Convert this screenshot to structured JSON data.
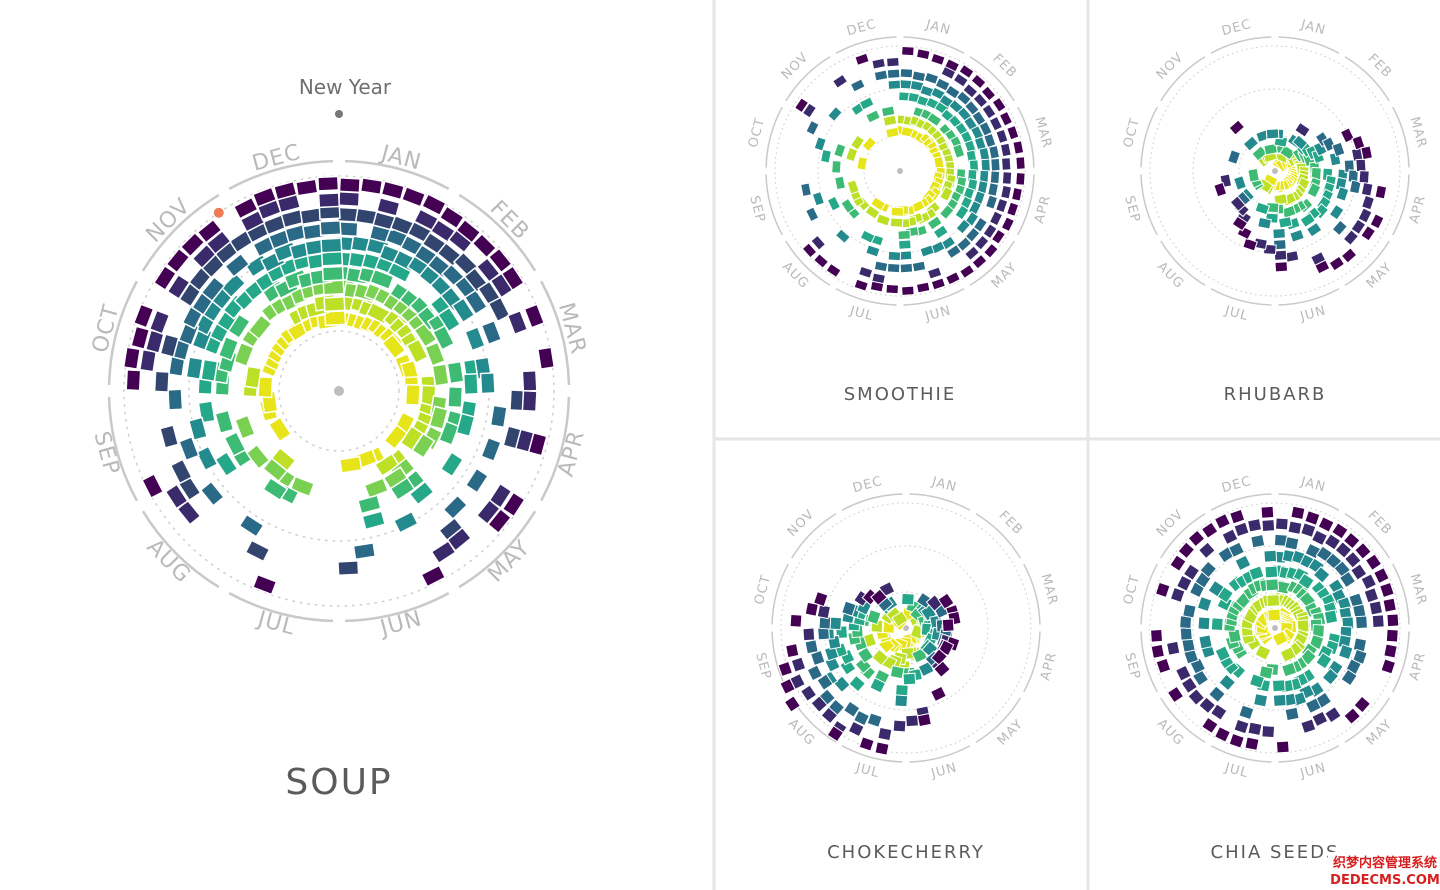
{
  "months": [
    "JAN",
    "FEB",
    "MAR",
    "APR",
    "MAY",
    "JUN",
    "JUL",
    "AUG",
    "SEP",
    "OCT",
    "NOV",
    "DEC"
  ],
  "annotation": {
    "label": "New Year",
    "marker_month": "JAN",
    "highlight_month": "NOV"
  },
  "colors": {
    "ring": "#c9c9c9",
    "dots": "#cfcfcf",
    "center": "#bdbdbd",
    "annotation_dot": "#777777",
    "highlight_dot": "#ef7b56",
    "panel_divider": "#e6e6e6",
    "palette": [
      "#440154",
      "#3b2a6b",
      "#31456f",
      "#2a6a86",
      "#238a8d",
      "#25a889",
      "#3dbb74",
      "#7ad151",
      "#bddf26",
      "#e7e419"
    ]
  },
  "chart_data": [
    {
      "type": "radial-heatmap",
      "name": "soup",
      "title": "SOUP",
      "axis": "month of year (clockwise from JAN)",
      "radial_axis": "year (inner = older, outer = recent)",
      "peak_months": [
        "NOV",
        "DEC",
        "JAN",
        "FEB"
      ],
      "low_months": [
        "JUN",
        "JUL",
        "AUG"
      ]
    },
    {
      "type": "radial-heatmap",
      "name": "smoothie",
      "title": "SMOOTHIE",
      "peak_months": [
        "JAN",
        "FEB",
        "MAR",
        "APR",
        "MAY"
      ],
      "low_months": [
        "OCT",
        "NOV"
      ]
    },
    {
      "type": "radial-heatmap",
      "name": "rhubarb",
      "title": "RHUBARB",
      "peak_months": [
        "APR",
        "MAY"
      ],
      "low_months": [
        "SEP",
        "OCT",
        "NOV",
        "DEC"
      ]
    },
    {
      "type": "radial-heatmap",
      "name": "chokecherry",
      "title": "CHOKECHERRY",
      "peak_months": [
        "AUG",
        "SEP"
      ],
      "low_months": [
        "DEC",
        "JAN",
        "FEB"
      ]
    },
    {
      "type": "radial-heatmap",
      "name": "chia",
      "title": "CHIA SEEDS",
      "peak_months": [
        "JAN",
        "FEB",
        "MAR"
      ],
      "low_months": [
        "JUL",
        "AUG"
      ]
    }
  ],
  "watermark": {
    "line1": "织梦内容管理系统",
    "line2": "DEDECMS.COM"
  }
}
